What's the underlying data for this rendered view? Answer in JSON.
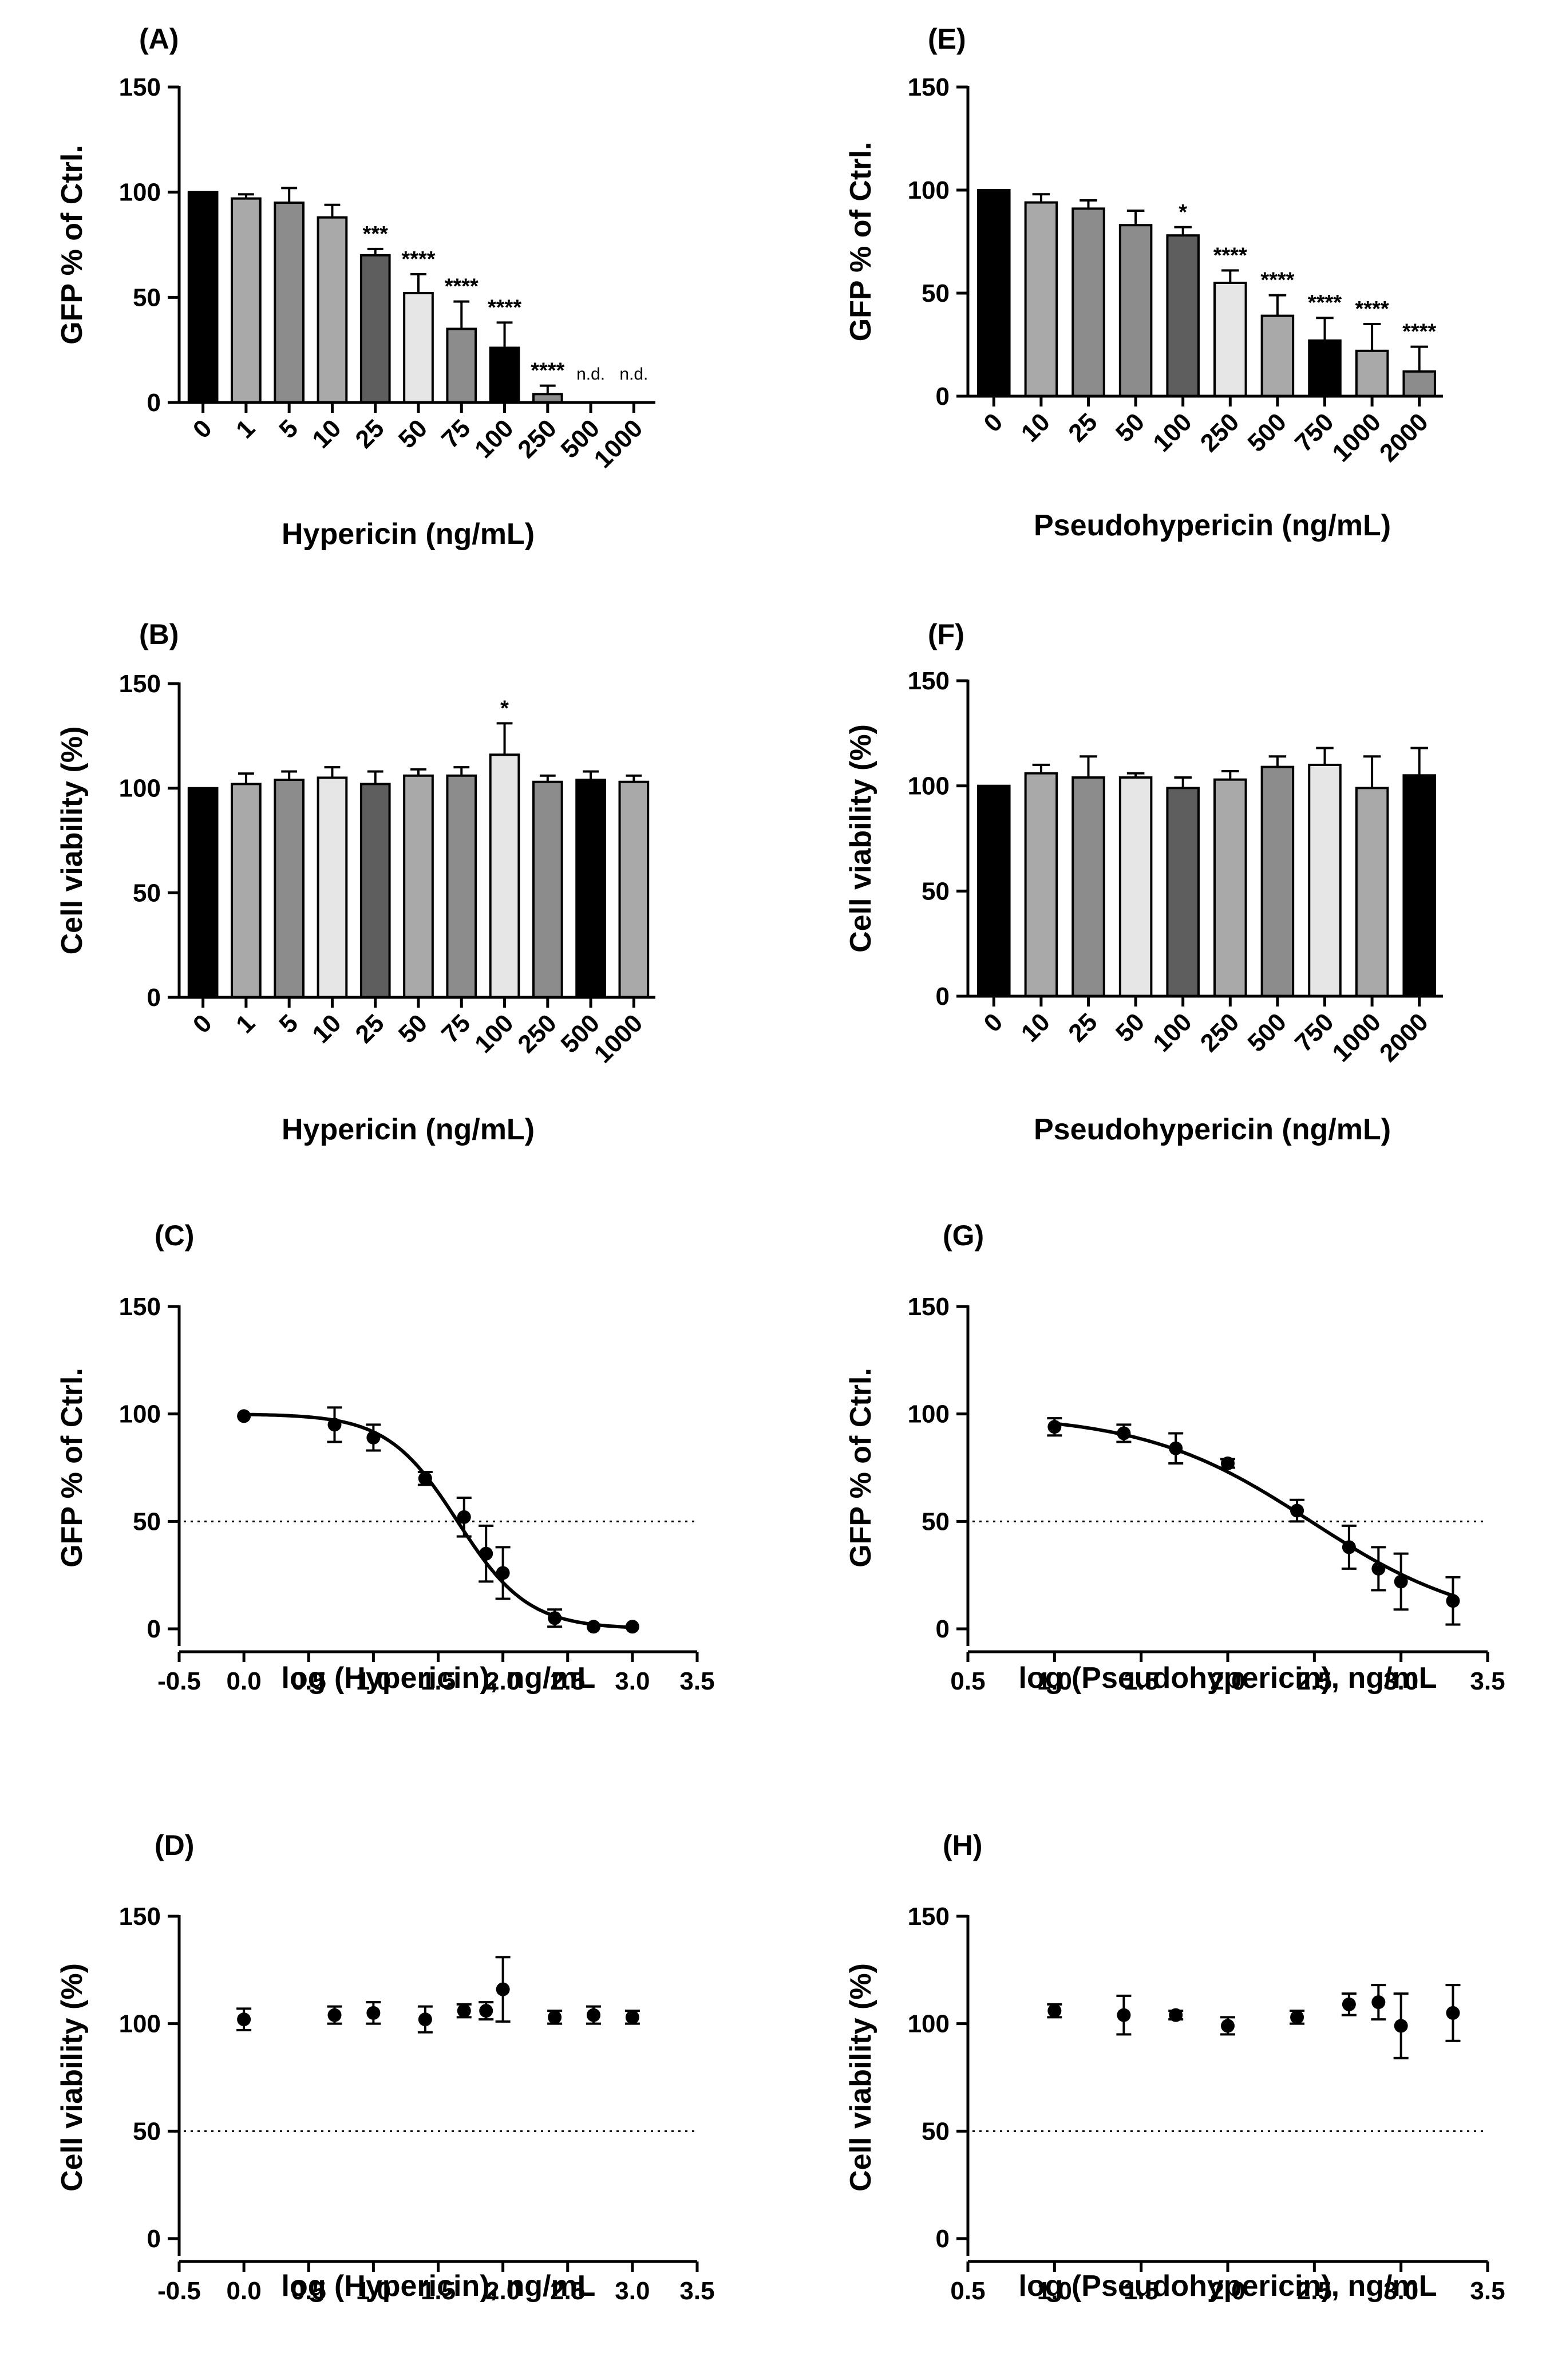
{
  "colors": {
    "black": "#000000",
    "dark": "#5e5e5e",
    "mid": "#8c8c8c",
    "light": "#a9a9a9",
    "pale": "#e6e6e6"
  },
  "chart_data": [
    {
      "id": "A",
      "panel_label": "(A)",
      "type": "bar",
      "categories": [
        "0",
        "1",
        "5",
        "10",
        "25",
        "50",
        "75",
        "100",
        "250",
        "500",
        "1000"
      ],
      "values": [
        100,
        97,
        95,
        88,
        70,
        52,
        35,
        26,
        4,
        0,
        0
      ],
      "errors": [
        0,
        2,
        7,
        6,
        3,
        9,
        13,
        12,
        4,
        0,
        0
      ],
      "fills": [
        "#000000",
        "#a9a9a9",
        "#8c8c8c",
        "#a9a9a9",
        "#5e5e5e",
        "#e6e6e6",
        "#8c8c8c",
        "#000000",
        "#8c8c8c",
        "#ffffff",
        "#ffffff"
      ],
      "annotations": [
        "",
        "",
        "",
        "",
        "***",
        "****",
        "****",
        "****",
        "****",
        "n.d.",
        "n.d."
      ],
      "ylabel": "GFP % of Ctrl.",
      "xlabel": "Hypericin (ng/mL)",
      "ylim": [
        0,
        150
      ],
      "yticks": [
        "0",
        "50",
        "100",
        "150"
      ]
    },
    {
      "id": "B",
      "panel_label": "(B)",
      "type": "bar",
      "categories": [
        "0",
        "1",
        "5",
        "10",
        "25",
        "50",
        "75",
        "100",
        "250",
        "500",
        "1000"
      ],
      "values": [
        100,
        102,
        104,
        105,
        102,
        106,
        106,
        116,
        103,
        104,
        103
      ],
      "errors": [
        0,
        5,
        4,
        5,
        6,
        3,
        4,
        15,
        3,
        4,
        3
      ],
      "fills": [
        "#000000",
        "#a9a9a9",
        "#8c8c8c",
        "#e6e6e6",
        "#5e5e5e",
        "#a9a9a9",
        "#8c8c8c",
        "#e6e6e6",
        "#8c8c8c",
        "#000000",
        "#a9a9a9"
      ],
      "annotations": [
        "",
        "",
        "",
        "",
        "",
        "",
        "",
        "*",
        "",
        "",
        ""
      ],
      "ylabel": "Cell viability (%)",
      "xlabel": "Hypericin (ng/mL)",
      "ylim": [
        0,
        150
      ],
      "yticks": [
        "0",
        "50",
        "100",
        "150"
      ]
    },
    {
      "id": "C",
      "panel_label": "(C)",
      "type": "scatter",
      "points": [
        {
          "x": 0.0,
          "y": 99,
          "err": 0
        },
        {
          "x": 0.7,
          "y": 95,
          "err": 8
        },
        {
          "x": 1.0,
          "y": 89,
          "err": 6
        },
        {
          "x": 1.4,
          "y": 70,
          "err": 3
        },
        {
          "x": 1.7,
          "y": 52,
          "err": 9
        },
        {
          "x": 1.87,
          "y": 35,
          "err": 13
        },
        {
          "x": 2.0,
          "y": 26,
          "err": 12
        },
        {
          "x": 2.4,
          "y": 5,
          "err": 4
        },
        {
          "x": 2.7,
          "y": 1,
          "err": 0
        },
        {
          "x": 3.0,
          "y": 1,
          "err": 0
        }
      ],
      "fit": {
        "type": "sigmoid",
        "top": 100,
        "bottom": 0,
        "log_ic50": 1.65,
        "hill": 1.6
      },
      "reference_line": 50,
      "ylabel": "GFP % of Ctrl.",
      "xlabel": "log (Hypericin), ng/mL",
      "xlim": [
        -0.5,
        3.5
      ],
      "xticks": [
        "-0.5",
        "0.0",
        "0.5",
        "1.0",
        "1.5",
        "2.0",
        "2.5",
        "3.0",
        "3.5"
      ],
      "ylim": [
        0,
        150
      ],
      "yticks": [
        "0",
        "50",
        "100",
        "150"
      ]
    },
    {
      "id": "D",
      "panel_label": "(D)",
      "type": "scatter",
      "points": [
        {
          "x": 0.0,
          "y": 102,
          "err": 5
        },
        {
          "x": 0.7,
          "y": 104,
          "err": 4
        },
        {
          "x": 1.0,
          "y": 105,
          "err": 5
        },
        {
          "x": 1.4,
          "y": 102,
          "err": 6
        },
        {
          "x": 1.7,
          "y": 106,
          "err": 3
        },
        {
          "x": 1.87,
          "y": 106,
          "err": 4
        },
        {
          "x": 2.0,
          "y": 116,
          "err": 15
        },
        {
          "x": 2.4,
          "y": 103,
          "err": 3
        },
        {
          "x": 2.7,
          "y": 104,
          "err": 4
        },
        {
          "x": 3.0,
          "y": 103,
          "err": 3
        }
      ],
      "reference_line": 50,
      "ylabel": "Cell viability (%)",
      "xlabel": "log (Hypericin), ng/mL",
      "xlim": [
        -0.5,
        3.5
      ],
      "xticks": [
        "-0.5",
        "0.0",
        "0.5",
        "1.0",
        "1.5",
        "2.0",
        "2.5",
        "3.0",
        "3.5"
      ],
      "ylim": [
        0,
        150
      ],
      "yticks": [
        "0",
        "50",
        "100",
        "150"
      ]
    },
    {
      "id": "E",
      "panel_label": "(E)",
      "type": "bar",
      "categories": [
        "0",
        "10",
        "25",
        "50",
        "100",
        "250",
        "500",
        "750",
        "1000",
        "2000"
      ],
      "values": [
        100,
        94,
        91,
        83,
        78,
        55,
        39,
        27,
        22,
        12
      ],
      "errors": [
        0,
        4,
        4,
        7,
        4,
        6,
        10,
        11,
        13,
        12
      ],
      "fills": [
        "#000000",
        "#a9a9a9",
        "#8c8c8c",
        "#8c8c8c",
        "#5e5e5e",
        "#e6e6e6",
        "#a9a9a9",
        "#000000",
        "#a9a9a9",
        "#8c8c8c"
      ],
      "annotations": [
        "",
        "",
        "",
        "",
        "*",
        "****",
        "****",
        "****",
        "****",
        "****"
      ],
      "ylabel": "GFP % of Ctrl.",
      "xlabel": "Pseudohypericin (ng/mL)",
      "ylim": [
        0,
        150
      ],
      "yticks": [
        "0",
        "50",
        "100",
        "150"
      ]
    },
    {
      "id": "F",
      "panel_label": "(F)",
      "type": "bar",
      "categories": [
        "0",
        "10",
        "25",
        "50",
        "100",
        "250",
        "500",
        "750",
        "1000",
        "2000"
      ],
      "values": [
        100,
        106,
        104,
        104,
        99,
        103,
        109,
        110,
        99,
        105
      ],
      "errors": [
        0,
        4,
        10,
        2,
        5,
        4,
        5,
        8,
        15,
        13
      ],
      "fills": [
        "#000000",
        "#a9a9a9",
        "#8c8c8c",
        "#e6e6e6",
        "#5e5e5e",
        "#a9a9a9",
        "#8c8c8c",
        "#e6e6e6",
        "#a9a9a9",
        "#000000"
      ],
      "annotations": [
        "",
        "",
        "",
        "",
        "",
        "",
        "",
        "",
        "",
        ""
      ],
      "ylabel": "Cell viability (%)",
      "xlabel": "Pseudohypericin (ng/mL)",
      "ylim": [
        0,
        150
      ],
      "yticks": [
        "0",
        "50",
        "100",
        "150"
      ]
    },
    {
      "id": "G",
      "panel_label": "(G)",
      "type": "scatter",
      "points": [
        {
          "x": 1.0,
          "y": 94,
          "err": 4
        },
        {
          "x": 1.4,
          "y": 91,
          "err": 4
        },
        {
          "x": 1.7,
          "y": 84,
          "err": 7
        },
        {
          "x": 2.0,
          "y": 77,
          "err": 2
        },
        {
          "x": 2.4,
          "y": 55,
          "err": 5
        },
        {
          "x": 2.7,
          "y": 38,
          "err": 10
        },
        {
          "x": 2.87,
          "y": 28,
          "err": 10
        },
        {
          "x": 3.0,
          "y": 22,
          "err": 13
        },
        {
          "x": 3.3,
          "y": 13,
          "err": 11
        }
      ],
      "fit": {
        "type": "sigmoid",
        "top": 100,
        "bottom": 0,
        "log_ic50": 2.48,
        "hill": 0.9
      },
      "reference_line": 50,
      "ylabel": "GFP % of Ctrl.",
      "xlabel": "log (Pseudohypericin), ng/mL",
      "xlim": [
        0.5,
        3.5
      ],
      "xticks": [
        "0.5",
        "1.0",
        "1.5",
        "2.0",
        "2.5",
        "3.0",
        "3.5"
      ],
      "ylim": [
        0,
        150
      ],
      "yticks": [
        "0",
        "50",
        "100",
        "150"
      ]
    },
    {
      "id": "H",
      "panel_label": "(H)",
      "type": "scatter",
      "points": [
        {
          "x": 1.0,
          "y": 106,
          "err": 3
        },
        {
          "x": 1.4,
          "y": 104,
          "err": 9
        },
        {
          "x": 1.7,
          "y": 104,
          "err": 2
        },
        {
          "x": 2.0,
          "y": 99,
          "err": 4
        },
        {
          "x": 2.4,
          "y": 103,
          "err": 3
        },
        {
          "x": 2.7,
          "y": 109,
          "err": 5
        },
        {
          "x": 2.87,
          "y": 110,
          "err": 8
        },
        {
          "x": 3.0,
          "y": 99,
          "err": 15
        },
        {
          "x": 3.3,
          "y": 105,
          "err": 13
        }
      ],
      "reference_line": 50,
      "ylabel": "Cell viability (%)",
      "xlabel": "log (Pseudohypericin), ng/mL",
      "xlim": [
        0.5,
        3.5
      ],
      "xticks": [
        "0.5",
        "1.0",
        "1.5",
        "2.0",
        "2.5",
        "3.0",
        "3.5"
      ],
      "ylim": [
        0,
        150
      ],
      "yticks": [
        "0",
        "50",
        "100",
        "150"
      ]
    }
  ]
}
